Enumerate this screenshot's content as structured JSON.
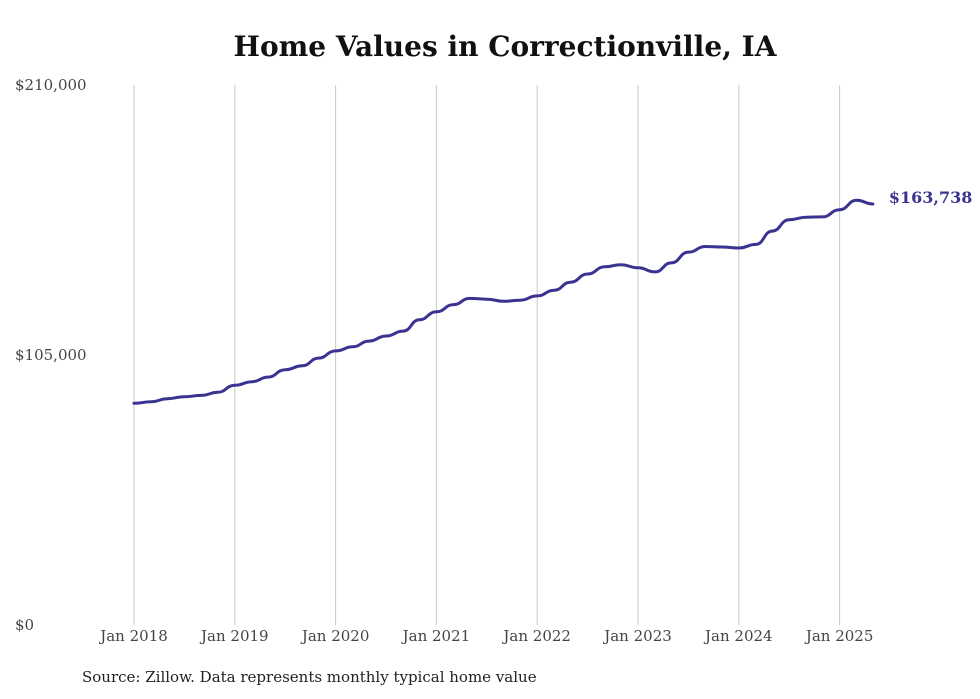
{
  "chart_data": {
    "type": "line",
    "title": "Home Values in Correctionville, IA",
    "source": "Source: Zillow. Data represents monthly typical home value",
    "ylim": [
      0,
      210000
    ],
    "y_ticks": [
      "$210,000",
      "$105,000",
      "$0"
    ],
    "y_tick_values": [
      210000,
      105000,
      0
    ],
    "x_ticks": [
      "Jan 2018",
      "Jan 2019",
      "Jan 2020",
      "Jan 2021",
      "Jan 2022",
      "Jan 2023",
      "Jan 2024",
      "Jan 2025"
    ],
    "grid": "vertical",
    "line_color": "#3a3391",
    "end_label": "$163,738",
    "series": [
      {
        "values": [
          [
            2018.0,
            86200
          ],
          [
            2018.17,
            86800
          ],
          [
            2018.33,
            88000
          ],
          [
            2018.5,
            88800
          ],
          [
            2018.67,
            89300
          ],
          [
            2018.83,
            90500
          ],
          [
            2019.0,
            93200
          ],
          [
            2019.17,
            94600
          ],
          [
            2019.33,
            96400
          ],
          [
            2019.5,
            99300
          ],
          [
            2019.67,
            100800
          ],
          [
            2019.83,
            103800
          ],
          [
            2020.0,
            106600
          ],
          [
            2020.17,
            108200
          ],
          [
            2020.33,
            110400
          ],
          [
            2020.5,
            112400
          ],
          [
            2020.67,
            114300
          ],
          [
            2020.83,
            118700
          ],
          [
            2021.0,
            121800
          ],
          [
            2021.17,
            124600
          ],
          [
            2021.33,
            127000
          ],
          [
            2021.5,
            126700
          ],
          [
            2021.67,
            125900
          ],
          [
            2021.83,
            126300
          ],
          [
            2022.0,
            128000
          ],
          [
            2022.17,
            130200
          ],
          [
            2022.33,
            133300
          ],
          [
            2022.5,
            136500
          ],
          [
            2022.67,
            139300
          ],
          [
            2022.83,
            140100
          ],
          [
            2023.0,
            138900
          ],
          [
            2023.17,
            137300
          ],
          [
            2023.33,
            140800
          ],
          [
            2023.5,
            145000
          ],
          [
            2023.67,
            147200
          ],
          [
            2023.83,
            147000
          ],
          [
            2024.0,
            146600
          ],
          [
            2024.17,
            148000
          ],
          [
            2024.33,
            153200
          ],
          [
            2024.5,
            157600
          ],
          [
            2024.67,
            158600
          ],
          [
            2024.83,
            158700
          ],
          [
            2025.0,
            161500
          ],
          [
            2025.17,
            165200
          ],
          [
            2025.33,
            163738
          ]
        ]
      }
    ]
  }
}
